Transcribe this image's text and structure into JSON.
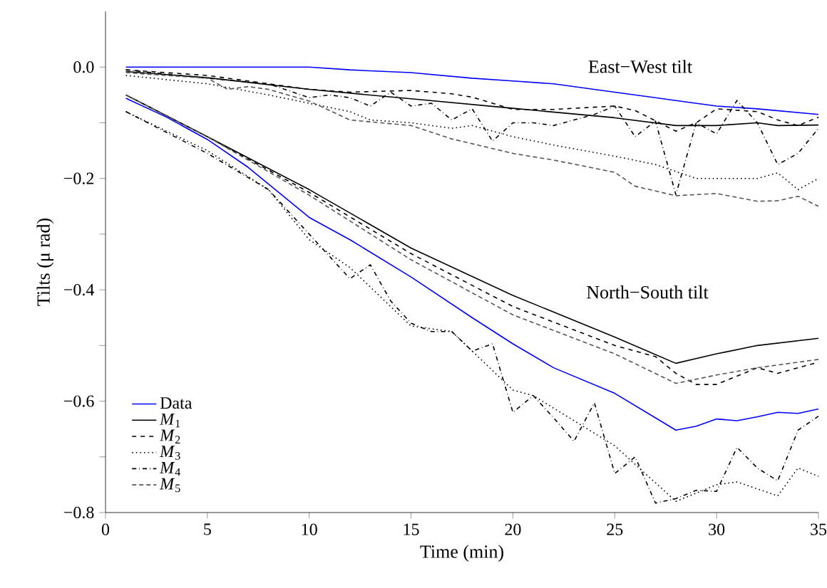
{
  "chart_data": {
    "type": "line",
    "xlabel": "Time (min)",
    "ylabel": "Tilts (μ rad)",
    "xlim": [
      0,
      35
    ],
    "ylim": [
      -0.8,
      0.1
    ],
    "xticks": [
      0,
      5,
      10,
      15,
      20,
      25,
      30,
      35
    ],
    "yticks": [
      {
        "value": -0.8,
        "label": "−0.8"
      },
      {
        "value": -0.7,
        "label": null
      },
      {
        "value": -0.6,
        "label": "−0.6"
      },
      {
        "value": -0.5,
        "label": null
      },
      {
        "value": -0.4,
        "label": "−0.4"
      },
      {
        "value": -0.3,
        "label": null
      },
      {
        "value": -0.2,
        "label": "−0.2"
      },
      {
        "value": -0.1,
        "label": null
      },
      {
        "value": 0,
        "label": "0.0"
      }
    ],
    "grid": false,
    "legend": "bottom left",
    "annotations": [
      "East−West tilt",
      "North−South tilt"
    ],
    "series": [
      {
        "name": "Data",
        "color": "#0000ff",
        "line_style": "solid",
        "x": [
          1,
          3,
          5,
          8,
          10,
          12,
          15,
          18,
          20,
          22,
          25,
          27,
          28,
          30,
          32,
          35
        ],
        "values": [
          0,
          0,
          0,
          0,
          0,
          -0.005,
          -0.01,
          -0.02,
          -0.025,
          -0.03,
          -0.045,
          -0.055,
          -0.06,
          -0.07,
          -0.075,
          -0.085
        ]
      },
      {
        "color": "#0000ff",
        "line_style": "solid",
        "x": [
          1,
          3,
          5,
          7,
          10,
          12,
          15,
          18,
          20,
          22,
          25,
          27,
          28,
          29,
          30,
          31,
          32,
          33,
          34,
          35
        ],
        "values": [
          -0.056,
          -0.09,
          -0.13,
          -0.18,
          -0.27,
          -0.31,
          -0.377,
          -0.45,
          -0.497,
          -0.54,
          -0.586,
          -0.63,
          -0.652,
          -0.645,
          -0.632,
          -0.635,
          -0.628,
          -0.62,
          -0.622,
          -0.614
        ]
      },
      {
        "name": "*M*$_{1}$",
        "color": "#000000",
        "line_style": "solid",
        "x": [
          1,
          5,
          10,
          15,
          20,
          25,
          28,
          30,
          32,
          33,
          35
        ],
        "values": [
          -0.008,
          -0.019,
          -0.04,
          -0.057,
          -0.074,
          -0.091,
          -0.105,
          -0.105,
          -0.1,
          -0.105,
          -0.104
        ]
      },
      {
        "color": "#000000",
        "line_style": "solid",
        "x": [
          1,
          5,
          10,
          15,
          20,
          25,
          28,
          30,
          32,
          35
        ],
        "values": [
          -0.05,
          -0.125,
          -0.22,
          -0.325,
          -0.41,
          -0.485,
          -0.532,
          -0.515,
          -0.5,
          -0.487
        ]
      },
      {
        "name": "*M*$_{2}$",
        "color": "#000000",
        "line_style": "dashed",
        "x": [
          1,
          5,
          10,
          12,
          15,
          17,
          18,
          20,
          22,
          25,
          26,
          28,
          29,
          30,
          32,
          33,
          34,
          35
        ],
        "values": [
          -0.005,
          -0.015,
          -0.04,
          -0.045,
          -0.042,
          -0.048,
          -0.054,
          -0.076,
          -0.076,
          -0.07,
          -0.078,
          -0.115,
          -0.1,
          -0.075,
          -0.08,
          -0.095,
          -0.105,
          -0.09
        ]
      },
      {
        "color": "#000000",
        "line_style": "dashed",
        "x": [
          1,
          5,
          10,
          15,
          20,
          25,
          27,
          28,
          29,
          30,
          32,
          33,
          35
        ],
        "values": [
          -0.05,
          -0.125,
          -0.225,
          -0.335,
          -0.43,
          -0.5,
          -0.52,
          -0.55,
          -0.57,
          -0.57,
          -0.54,
          -0.55,
          -0.53
        ]
      },
      {
        "name": "*M*$_{3}$",
        "color": "#000000",
        "line_style": "dotted",
        "x": [
          1,
          5,
          8,
          10,
          12,
          13,
          15,
          17,
          18,
          20,
          22,
          25,
          27,
          29,
          30,
          32,
          33,
          34,
          35
        ],
        "values": [
          -0.015,
          -0.03,
          -0.05,
          -0.065,
          -0.08,
          -0.095,
          -0.1,
          -0.11,
          -0.105,
          -0.125,
          -0.14,
          -0.16,
          -0.175,
          -0.2,
          -0.2,
          -0.2,
          -0.19,
          -0.22,
          -0.2
        ]
      },
      {
        "color": "#000000",
        "line_style": "dotted",
        "x": [
          1,
          5,
          8,
          10,
          12,
          15,
          17,
          20,
          21,
          25,
          28,
          30,
          31,
          33,
          34,
          35
        ],
        "values": [
          -0.08,
          -0.15,
          -0.22,
          -0.31,
          -0.36,
          -0.465,
          -0.475,
          -0.58,
          -0.59,
          -0.68,
          -0.78,
          -0.75,
          -0.745,
          -0.77,
          -0.72,
          -0.735
        ]
      },
      {
        "name": "*M*$_{4}$",
        "color": "#000000",
        "line_style": "dashdot",
        "x": [
          1,
          5,
          8,
          10,
          11,
          12,
          13,
          14,
          15,
          16,
          17,
          18,
          19,
          20,
          21,
          22,
          24,
          25,
          26,
          27,
          28,
          29,
          30,
          31,
          32,
          33,
          34,
          35
        ],
        "values": [
          -0.005,
          -0.02,
          -0.03,
          -0.055,
          -0.05,
          -0.055,
          -0.07,
          -0.045,
          -0.07,
          -0.065,
          -0.095,
          -0.075,
          -0.133,
          -0.1,
          -0.1,
          -0.105,
          -0.085,
          -0.07,
          -0.125,
          -0.097,
          -0.229,
          -0.1,
          -0.12,
          -0.06,
          -0.1,
          -0.175,
          -0.155,
          -0.11
        ]
      },
      {
        "color": "#000000",
        "line_style": "dashdot",
        "x": [
          1,
          5,
          8,
          10,
          12,
          13,
          14,
          15,
          16,
          17,
          18,
          19,
          20,
          21,
          22,
          23,
          24,
          25,
          26,
          27,
          28,
          29,
          30,
          31,
          32,
          33,
          34,
          35
        ],
        "values": [
          -0.08,
          -0.155,
          -0.22,
          -0.3,
          -0.38,
          -0.355,
          -0.42,
          -0.46,
          -0.475,
          -0.475,
          -0.51,
          -0.497,
          -0.62,
          -0.59,
          -0.63,
          -0.672,
          -0.603,
          -0.73,
          -0.7,
          -0.783,
          -0.775,
          -0.76,
          -0.762,
          -0.683,
          -0.72,
          -0.743,
          -0.652,
          -0.627
        ]
      },
      {
        "name": "*M*$_{5}$",
        "color": "#555555",
        "line_style": "dashdotdot",
        "x": [
          1,
          5,
          6,
          7,
          8,
          10,
          12,
          15,
          17,
          20,
          22,
          25,
          26,
          28,
          30,
          32,
          33,
          34,
          35
        ],
        "values": [
          -0.01,
          -0.02,
          -0.04,
          -0.035,
          -0.04,
          -0.061,
          -0.095,
          -0.105,
          -0.129,
          -0.155,
          -0.167,
          -0.189,
          -0.214,
          -0.231,
          -0.227,
          -0.241,
          -0.24,
          -0.232,
          -0.25
        ]
      },
      {
        "color": "#555555",
        "line_style": "dashdotdot",
        "x": [
          1,
          5,
          10,
          15,
          20,
          25,
          28,
          30,
          32,
          35
        ],
        "values": [
          -0.05,
          -0.125,
          -0.23,
          -0.346,
          -0.445,
          -0.515,
          -0.568,
          -0.553,
          -0.54,
          -0.525
        ]
      }
    ]
  }
}
